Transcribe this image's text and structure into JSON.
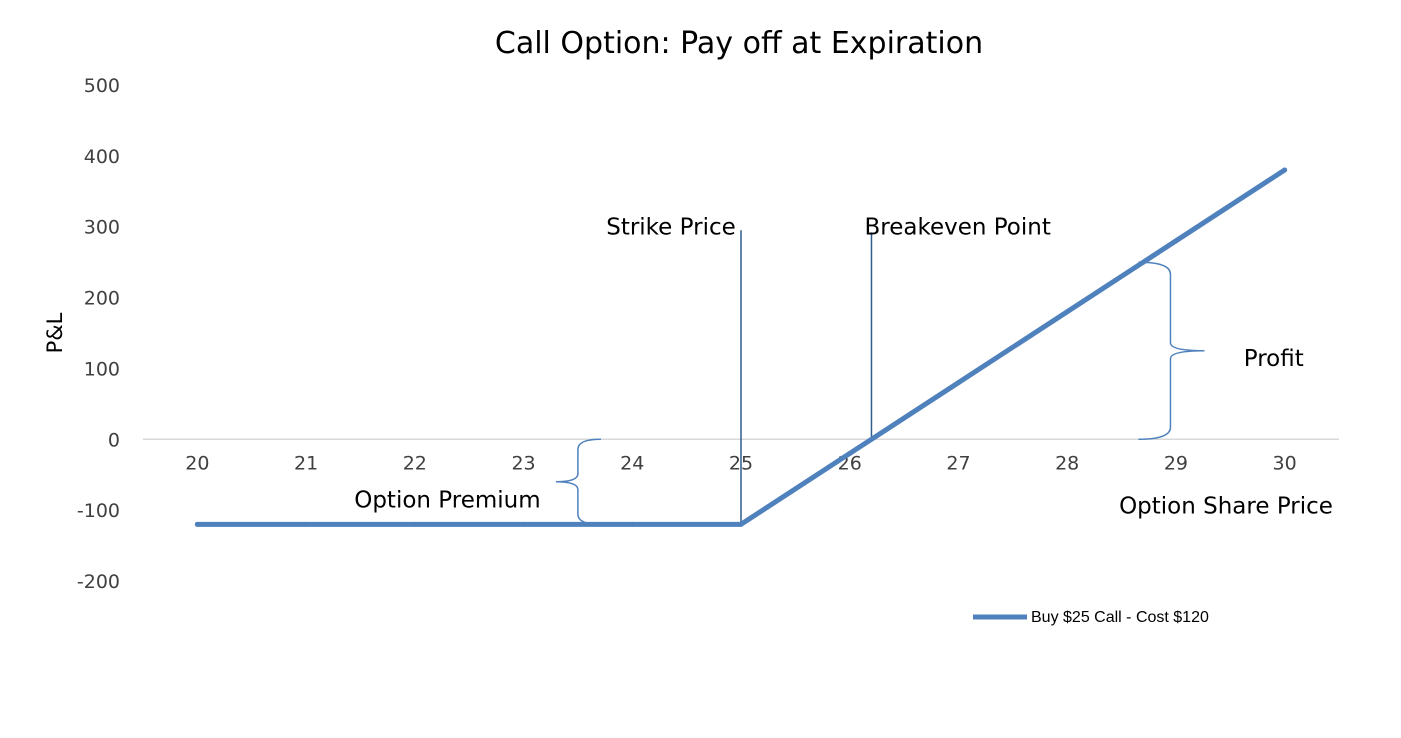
{
  "chart_data": {
    "type": "line",
    "title": "Call Option: Pay off at Expiration",
    "xlabel": "Option Share Price",
    "ylabel": "P&L",
    "x_ticks": [
      20,
      21,
      22,
      23,
      24,
      25,
      26,
      27,
      28,
      29,
      30
    ],
    "y_ticks": [
      -200,
      -100,
      0,
      100,
      200,
      300,
      400,
      500
    ],
    "xlim": [
      19.5,
      30.5
    ],
    "ylim": [
      -200,
      500
    ],
    "grid": false,
    "legend_position": "bottom-right",
    "series": [
      {
        "name": "Buy $25 Call - Cost $120",
        "color": "#4f81bd",
        "x": [
          20,
          21,
          22,
          23,
          24,
          25,
          26,
          27,
          28,
          29,
          30
        ],
        "y": [
          -120,
          -120,
          -120,
          -120,
          -120,
          -120,
          -20,
          80,
          180,
          280,
          380
        ]
      }
    ],
    "annotations": [
      {
        "text": "Strike Price",
        "x": 25,
        "y": 300
      },
      {
        "text": "Breakeven Point",
        "x": 26.2,
        "y": 300
      },
      {
        "text": "Option Premium",
        "x": 22.3,
        "y": -85
      },
      {
        "text": "Profit",
        "x": 29.9,
        "y": 115
      }
    ],
    "markers": {
      "strike_x": 25,
      "breakeven_x": 26.2,
      "premium_range": [
        -120,
        0
      ],
      "profit_range": [
        0,
        250
      ]
    }
  }
}
